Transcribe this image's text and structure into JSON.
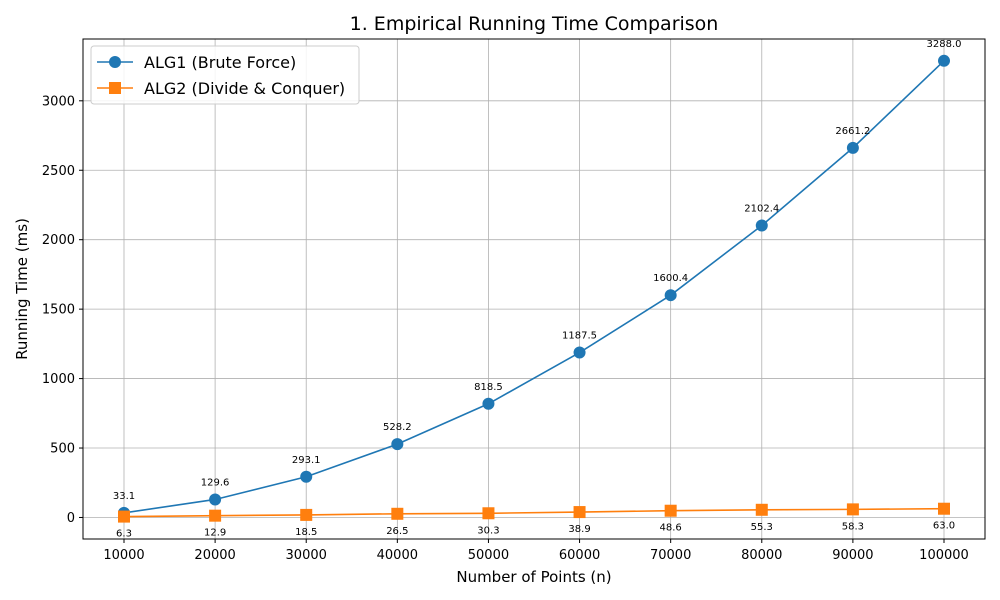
{
  "chart_data": {
    "type": "line",
    "title": "1. Empirical Running Time Comparison",
    "xlabel": "Number of Points (n)",
    "ylabel": "Running Time (ms)",
    "x": [
      10000,
      20000,
      30000,
      40000,
      50000,
      60000,
      70000,
      80000,
      90000,
      100000
    ],
    "x_tick_labels": [
      "10000",
      "20000",
      "30000",
      "40000",
      "50000",
      "60000",
      "70000",
      "80000",
      "90000",
      "100000"
    ],
    "y_ticks": [
      0,
      500,
      1000,
      1500,
      2000,
      2500,
      3000
    ],
    "y_tick_labels": [
      "0",
      "500",
      "1000",
      "1500",
      "2000",
      "2500",
      "3000"
    ],
    "xlim": [
      5500,
      104500
    ],
    "ylim": [
      -155,
      3445
    ],
    "grid": true,
    "legend_position": "top-left",
    "series": [
      {
        "name": "ALG1 (Brute Force)",
        "color": "#1f77b4",
        "marker": "circle",
        "values": [
          33.1,
          129.6,
          293.1,
          528.2,
          818.5,
          1187.5,
          1600.4,
          2102.4,
          2661.2,
          3288.0
        ],
        "labels": [
          "33.1",
          "129.6",
          "293.1",
          "528.2",
          "818.5",
          "1187.5",
          "1600.4",
          "2102.4",
          "2661.2",
          "3288.0"
        ],
        "label_position": "above"
      },
      {
        "name": "ALG2 (Divide & Conquer)",
        "color": "#ff7f0e",
        "marker": "square",
        "values": [
          6.3,
          12.9,
          18.5,
          26.5,
          30.3,
          38.9,
          48.6,
          55.3,
          58.3,
          63.0
        ],
        "labels": [
          "6.3",
          "12.9",
          "18.5",
          "26.5",
          "30.3",
          "38.9",
          "48.6",
          "55.3",
          "58.3",
          "63.0"
        ],
        "label_position": "below"
      }
    ]
  }
}
